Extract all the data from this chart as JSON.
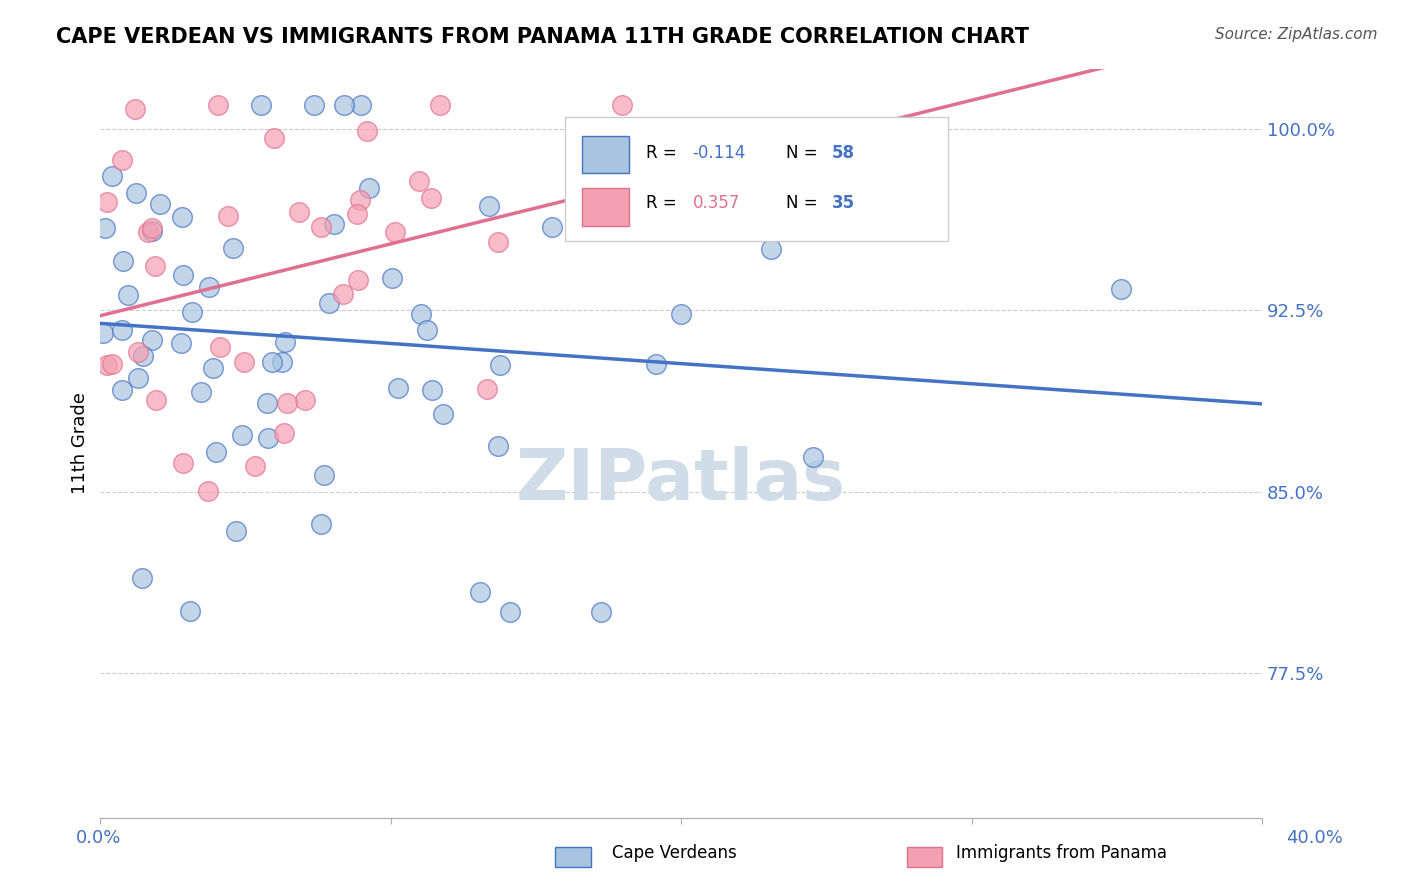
{
  "title": "CAPE VERDEAN VS IMMIGRANTS FROM PANAMA 11TH GRADE CORRELATION CHART",
  "source": "Source: ZipAtlas.com",
  "ylabel": "11th Grade",
  "ylabel_ticks": [
    "100.0%",
    "92.5%",
    "85.0%",
    "77.5%"
  ],
  "ylabel_values": [
    1.0,
    0.925,
    0.85,
    0.775
  ],
  "xmin": 0.0,
  "xmax": 0.4,
  "ymin": 0.715,
  "ymax": 1.025,
  "R_blue": -0.114,
  "N_blue": 58,
  "R_pink": 0.357,
  "N_pink": 35,
  "blue_color": "#a8c4e0",
  "pink_color": "#f4a0b0",
  "blue_line_color": "#4472c4",
  "pink_line_color": "#e07090",
  "tick_label_color": "#4472c4",
  "watermark_color": "#d0dce8"
}
